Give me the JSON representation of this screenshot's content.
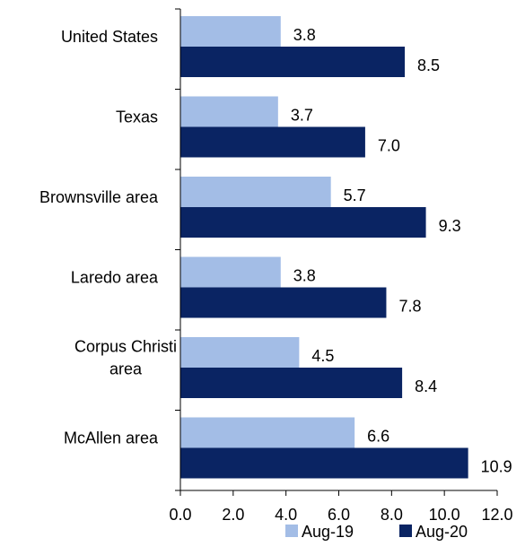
{
  "chart_data": {
    "type": "bar",
    "orientation": "horizontal",
    "categories": [
      "United States",
      "Texas",
      "Brownsville area",
      "Laredo area",
      "Corpus Christi area",
      "McAllen area"
    ],
    "category_label_lines": [
      [
        "United States"
      ],
      [
        "Texas"
      ],
      [
        "Brownsville area"
      ],
      [
        "Laredo area"
      ],
      [
        "Corpus Christi",
        "area"
      ],
      [
        "McAllen area"
      ]
    ],
    "series": [
      {
        "name": "Aug-19",
        "color": "#a3bde6",
        "values": [
          3.8,
          3.7,
          5.7,
          3.8,
          4.5,
          6.6
        ],
        "labels": [
          "3.8",
          "3.7",
          "5.7",
          "3.8",
          "4.5",
          "6.6"
        ]
      },
      {
        "name": "Aug-20",
        "color": "#0a2463",
        "values": [
          8.5,
          7.0,
          9.3,
          7.8,
          8.4,
          10.9
        ],
        "labels": [
          "8.5",
          "7.0",
          "9.3",
          "7.8",
          "8.4",
          "10.9"
        ]
      }
    ],
    "xlim": [
      0,
      12
    ],
    "xticks": [
      0,
      2,
      4,
      6,
      8,
      10,
      12
    ],
    "xtick_labels": [
      "0.0",
      "2.0",
      "4.0",
      "6.0",
      "8.0",
      "10.0",
      "12.0"
    ],
    "title": "",
    "xlabel": "",
    "ylabel": "",
    "grid": false,
    "legend_position": "bottom-right"
  }
}
